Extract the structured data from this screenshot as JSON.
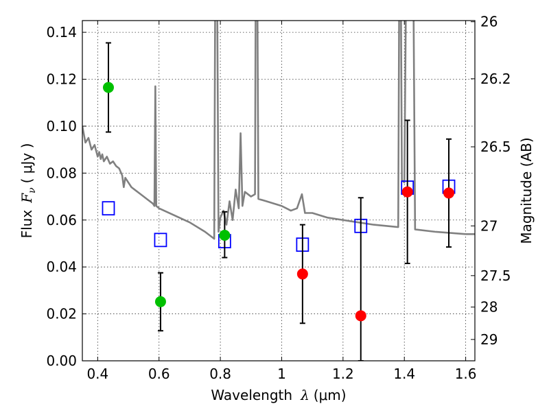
{
  "chart_data": {
    "type": "scatter",
    "xlabel_prefix": "Wavelength",
    "xlabel_symbol": "λ",
    "xlabel_unit": "(μm)",
    "ylabel_prefix": "Flux",
    "ylabel_symbol": "F",
    "ylabel_subscript": "ν",
    "ylabel_unit": "( μJy )",
    "y2label": "Magnitude (AB)",
    "xlim": [
      0.35,
      1.63
    ],
    "ylim": [
      0.0,
      0.145
    ],
    "grid": true,
    "x_ticks": [
      0.4,
      0.6,
      0.8,
      1.0,
      1.2,
      1.4,
      1.6
    ],
    "x_tick_labels": [
      "0.4",
      "0.6",
      "0.8",
      "1",
      "1.2",
      "1.4",
      "1.6"
    ],
    "y_ticks": [
      0.0,
      0.02,
      0.04,
      0.06,
      0.08,
      0.1,
      0.12,
      0.14
    ],
    "y_tick_labels": [
      "0.00",
      "0.02",
      "0.04",
      "0.06",
      "0.08",
      "0.10",
      "0.12",
      "0.14"
    ],
    "y2_ticks": [
      {
        "label": "26",
        "flux": 0.1445
      },
      {
        "label": "26.2",
        "flux": 0.1202
      },
      {
        "label": "26.5",
        "flux": 0.0912
      },
      {
        "label": "27",
        "flux": 0.0575
      },
      {
        "label": "27.5",
        "flux": 0.0363
      },
      {
        "label": "28",
        "flux": 0.0229
      },
      {
        "label": "29",
        "flux": 0.0091
      }
    ],
    "series": [
      {
        "marker": "circle",
        "color": "#00c000",
        "points": [
          {
            "x": 0.435,
            "y": 0.1165,
            "err_lo": 0.0975,
            "err_hi": 0.1355
          },
          {
            "x": 0.605,
            "y": 0.0252,
            "err_lo": 0.0128,
            "err_hi": 0.0375
          },
          {
            "x": 0.814,
            "y": 0.0535,
            "err_lo": 0.044,
            "err_hi": 0.0635
          }
        ]
      },
      {
        "marker": "circle",
        "color": "#ff0000",
        "points": [
          {
            "x": 1.068,
            "y": 0.037,
            "err_lo": 0.016,
            "err_hi": 0.058
          },
          {
            "x": 1.258,
            "y": 0.0192,
            "err_lo": 0.0,
            "err_hi": 0.0695
          },
          {
            "x": 1.41,
            "y": 0.072,
            "err_lo": 0.0415,
            "err_hi": 0.1025
          },
          {
            "x": 1.545,
            "y": 0.0715,
            "err_lo": 0.0485,
            "err_hi": 0.0945
          }
        ]
      },
      {
        "marker": "open-square",
        "color": "#0000ff",
        "points": [
          {
            "x": 0.435,
            "y": 0.065
          },
          {
            "x": 0.605,
            "y": 0.0515
          },
          {
            "x": 0.814,
            "y": 0.051
          },
          {
            "x": 1.068,
            "y": 0.0495
          },
          {
            "x": 1.258,
            "y": 0.0575
          },
          {
            "x": 1.41,
            "y": 0.0738
          },
          {
            "x": 1.545,
            "y": 0.0742
          }
        ]
      },
      {
        "marker": "line",
        "color": "#808080",
        "points": [
          {
            "x": 0.35,
            "y": 0.1
          },
          {
            "x": 0.36,
            "y": 0.093
          },
          {
            "x": 0.37,
            "y": 0.095
          },
          {
            "x": 0.38,
            "y": 0.09
          },
          {
            "x": 0.39,
            "y": 0.092
          },
          {
            "x": 0.4,
            "y": 0.087
          },
          {
            "x": 0.405,
            "y": 0.089
          },
          {
            "x": 0.41,
            "y": 0.086
          },
          {
            "x": 0.415,
            "y": 0.088
          },
          {
            "x": 0.42,
            "y": 0.085
          },
          {
            "x": 0.43,
            "y": 0.087
          },
          {
            "x": 0.44,
            "y": 0.084
          },
          {
            "x": 0.45,
            "y": 0.085
          },
          {
            "x": 0.46,
            "y": 0.083
          },
          {
            "x": 0.47,
            "y": 0.082
          },
          {
            "x": 0.48,
            "y": 0.079
          },
          {
            "x": 0.485,
            "y": 0.074
          },
          {
            "x": 0.49,
            "y": 0.078
          },
          {
            "x": 0.5,
            "y": 0.076
          },
          {
            "x": 0.51,
            "y": 0.074
          },
          {
            "x": 0.52,
            "y": 0.073
          },
          {
            "x": 0.54,
            "y": 0.071
          },
          {
            "x": 0.56,
            "y": 0.069
          },
          {
            "x": 0.58,
            "y": 0.067
          },
          {
            "x": 0.585,
            "y": 0.066
          },
          {
            "x": 0.588,
            "y": 0.117
          },
          {
            "x": 0.591,
            "y": 0.066
          },
          {
            "x": 0.6,
            "y": 0.065
          },
          {
            "x": 0.65,
            "y": 0.062
          },
          {
            "x": 0.7,
            "y": 0.059
          },
          {
            "x": 0.75,
            "y": 0.055
          },
          {
            "x": 0.78,
            "y": 0.052
          },
          {
            "x": 0.783,
            "y": 0.15
          },
          {
            "x": 0.79,
            "y": 0.15
          },
          {
            "x": 0.794,
            "y": 0.055
          },
          {
            "x": 0.8,
            "y": 0.061
          },
          {
            "x": 0.81,
            "y": 0.064
          },
          {
            "x": 0.82,
            "y": 0.058
          },
          {
            "x": 0.83,
            "y": 0.068
          },
          {
            "x": 0.84,
            "y": 0.06
          },
          {
            "x": 0.85,
            "y": 0.073
          },
          {
            "x": 0.86,
            "y": 0.065
          },
          {
            "x": 0.866,
            "y": 0.097
          },
          {
            "x": 0.872,
            "y": 0.066
          },
          {
            "x": 0.88,
            "y": 0.072
          },
          {
            "x": 0.9,
            "y": 0.07
          },
          {
            "x": 0.913,
            "y": 0.071
          },
          {
            "x": 0.915,
            "y": 0.15
          },
          {
            "x": 0.921,
            "y": 0.15
          },
          {
            "x": 0.924,
            "y": 0.069
          },
          {
            "x": 0.95,
            "y": 0.068
          },
          {
            "x": 1.0,
            "y": 0.066
          },
          {
            "x": 1.03,
            "y": 0.064
          },
          {
            "x": 1.05,
            "y": 0.065
          },
          {
            "x": 1.066,
            "y": 0.071
          },
          {
            "x": 1.076,
            "y": 0.063
          },
          {
            "x": 1.1,
            "y": 0.063
          },
          {
            "x": 1.15,
            "y": 0.061
          },
          {
            "x": 1.2,
            "y": 0.06
          },
          {
            "x": 1.25,
            "y": 0.059
          },
          {
            "x": 1.3,
            "y": 0.058
          },
          {
            "x": 1.38,
            "y": 0.057
          },
          {
            "x": 1.383,
            "y": 0.15
          },
          {
            "x": 1.389,
            "y": 0.15
          },
          {
            "x": 1.392,
            "y": 0.077
          },
          {
            "x": 1.4,
            "y": 0.076
          },
          {
            "x": 1.405,
            "y": 0.15
          },
          {
            "x": 1.43,
            "y": 0.15
          },
          {
            "x": 1.435,
            "y": 0.056
          },
          {
            "x": 1.5,
            "y": 0.055
          },
          {
            "x": 1.6,
            "y": 0.054
          },
          {
            "x": 1.63,
            "y": 0.054
          }
        ]
      }
    ]
  }
}
